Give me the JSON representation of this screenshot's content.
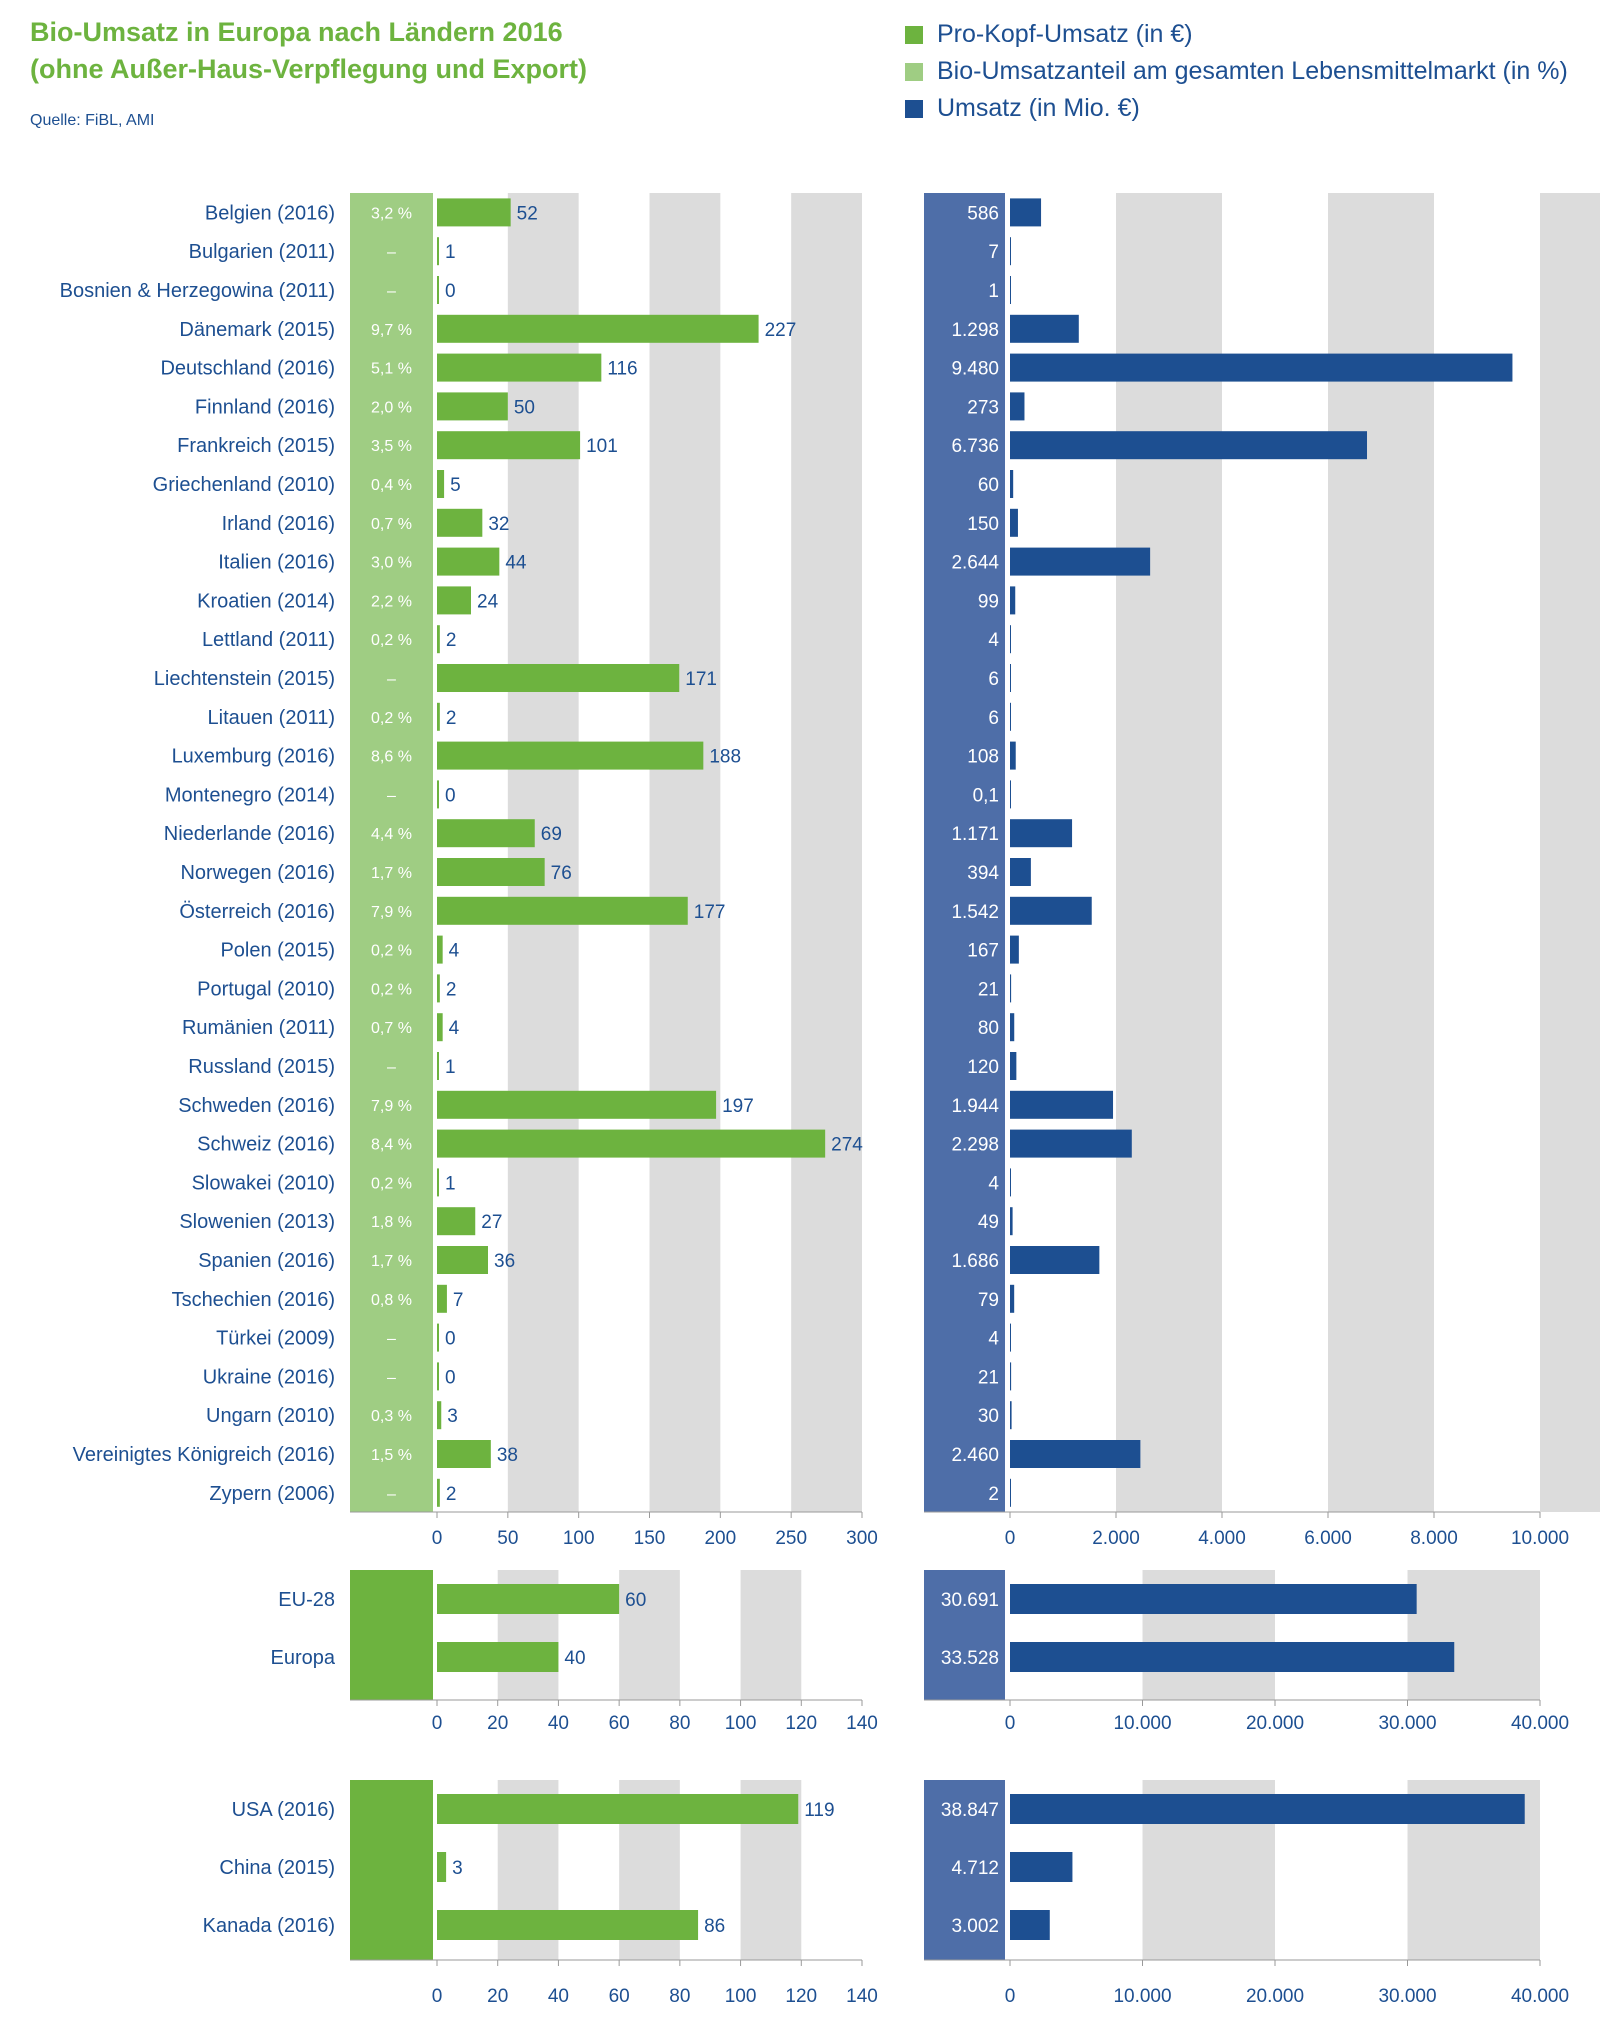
{
  "header": {
    "title_line1": "Bio-Umsatz in Europa nach Ländern 2016",
    "title_line2": "(ohne Außer-Haus-Verpflegung und Export)",
    "source": "Quelle: FiBL, AMI"
  },
  "legend": [
    {
      "label": "Pro-Kopf-Umsatz (in €)",
      "color": "#6db33f"
    },
    {
      "label": "Bio-Umsatzanteil am gesamten Lebensmittelmarkt (in %)",
      "color": "#9fcd83"
    },
    {
      "label": "Umsatz (in Mio. €)",
      "color": "#1d4f91"
    }
  ],
  "chart_data": [
    {
      "type": "bar",
      "orientation": "horizontal",
      "categories": [
        "Belgien (2016)",
        "Bulgarien (2011)",
        "Bosnien & Herzegowina (2011)",
        "Dänemark (2015)",
        "Deutschland (2016)",
        "Finnland (2016)",
        "Frankreich (2015)",
        "Griechenland (2010)",
        "Irland (2016)",
        "Italien (2016)",
        "Kroatien (2014)",
        "Lettland (2011)",
        "Liechtenstein (2015)",
        "Litauen (2011)",
        "Luxemburg (2016)",
        "Montenegro (2014)",
        "Niederlande (2016)",
        "Norwegen (2016)",
        "Österreich (2016)",
        "Polen (2015)",
        "Portugal (2010)",
        "Rumänien (2011)",
        "Russland (2015)",
        "Schweden (2016)",
        "Schweiz (2016)",
        "Slowakei (2010)",
        "Slowenien (2013)",
        "Spanien (2016)",
        "Tschechien (2016)",
        "Türkei (2009)",
        "Ukraine (2016)",
        "Ungarn (2010)",
        "Vereinigtes Königreich (2016)",
        "Zypern (2006)"
      ],
      "share_labels": [
        "3,2 %",
        "–",
        "–",
        "9,7 %",
        "5,1 %",
        "2,0 %",
        "3,5 %",
        "0,4 %",
        "0,7 %",
        "3,0 %",
        "2,2 %",
        "0,2 %",
        "–",
        "0,2 %",
        "8,6 %",
        "–",
        "4,4 %",
        "1,7 %",
        "7,9 %",
        "0,2 %",
        "0,2 %",
        "0,7 %",
        "–",
        "7,9 %",
        "8,4 %",
        "0,2 %",
        "1,8 %",
        "1,7 %",
        "0,8 %",
        "–",
        "–",
        "0,3 %",
        "1,5 %",
        "–"
      ],
      "per_capita": {
        "values": [
          52,
          1,
          0,
          227,
          116,
          50,
          101,
          5,
          32,
          44,
          24,
          2,
          171,
          2,
          188,
          0,
          69,
          76,
          177,
          4,
          2,
          4,
          1,
          197,
          274,
          1,
          27,
          36,
          7,
          0,
          0,
          3,
          38,
          2
        ],
        "labels": [
          "52",
          "1",
          "0",
          "227",
          "116",
          "50",
          "101",
          "5",
          "32",
          "44",
          "24",
          "2",
          "171",
          "2",
          "188",
          "0",
          "69",
          "76",
          "177",
          "4",
          "2",
          "4",
          "1",
          "197",
          "274",
          "1",
          "27",
          "36",
          "7",
          "0",
          "0",
          "3",
          "38",
          "2"
        ],
        "xlim": [
          0,
          300
        ],
        "ticks": [
          "0",
          "50",
          "100",
          "150",
          "200",
          "250",
          "300"
        ]
      },
      "revenue": {
        "values": [
          586,
          7,
          1,
          1298,
          9480,
          273,
          6736,
          60,
          150,
          2644,
          99,
          4,
          6,
          6,
          108,
          0.1,
          1171,
          394,
          1542,
          167,
          21,
          80,
          120,
          1944,
          2298,
          4,
          49,
          1686,
          79,
          4,
          21,
          30,
          2460,
          2
        ],
        "labels": [
          "586",
          "7",
          "1",
          "1.298",
          "9.480",
          "273",
          "6.736",
          "60",
          "150",
          "2.644",
          "99",
          "4",
          "6",
          "6",
          "108",
          "0,1",
          "1.171",
          "394",
          "1.542",
          "167",
          "21",
          "80",
          "120",
          "1.944",
          "2.298",
          "4",
          "49",
          "1.686",
          "79",
          "4",
          "21",
          "30",
          "2.460",
          "2"
        ],
        "xlim": [
          0,
          10000
        ],
        "ticks": [
          "0",
          "2.000",
          "4.000",
          "6.000",
          "8.000",
          "10.000"
        ]
      }
    },
    {
      "type": "bar",
      "orientation": "horizontal",
      "categories": [
        "EU-28",
        "Europa"
      ],
      "share_labels": [
        "",
        ""
      ],
      "per_capita": {
        "values": [
          60,
          40
        ],
        "labels": [
          "60",
          "40"
        ],
        "xlim": [
          0,
          140
        ],
        "ticks": [
          "0",
          "20",
          "40",
          "60",
          "80",
          "100",
          "120",
          "140"
        ]
      },
      "revenue": {
        "values": [
          30691,
          33528
        ],
        "labels": [
          "30.691",
          "33.528"
        ],
        "xlim": [
          0,
          40000
        ],
        "ticks": [
          "0",
          "10.000",
          "20.000",
          "30.000",
          "40.000"
        ]
      }
    },
    {
      "type": "bar",
      "orientation": "horizontal",
      "categories": [
        "USA (2016)",
        "China (2015)",
        "Kanada (2016)"
      ],
      "share_labels": [
        "",
        "",
        ""
      ],
      "per_capita": {
        "values": [
          119,
          3,
          86
        ],
        "labels": [
          "119",
          "3",
          "86"
        ],
        "xlim": [
          0,
          140
        ],
        "ticks": [
          "0",
          "20",
          "40",
          "60",
          "80",
          "100",
          "120",
          "140"
        ]
      },
      "revenue": {
        "values": [
          38847,
          4712,
          3002
        ],
        "labels": [
          "38.847",
          "4.712",
          "3.002"
        ],
        "xlim": [
          0,
          40000
        ],
        "ticks": [
          "0",
          "10.000",
          "20.000",
          "30.000",
          "40.000"
        ]
      }
    }
  ]
}
